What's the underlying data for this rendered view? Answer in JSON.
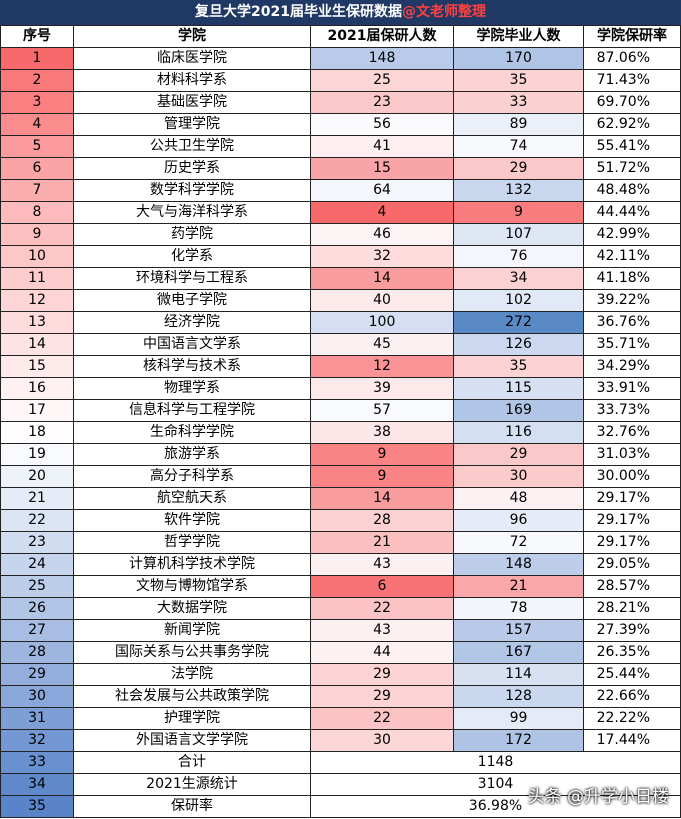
{
  "title": {
    "main": "复旦大学2021届毕业生保研数据",
    "author": "@文老师整理"
  },
  "headers": [
    "序号",
    "学院",
    "2021届保研人数",
    "学院毕业人数",
    "学院保研率"
  ],
  "rows": [
    {
      "no": "1",
      "college": "临床医学院",
      "baoyan": "148",
      "grad": "170",
      "rate": "87.06%",
      "c_no": "#f8696b",
      "c_bao": "#b9cbe8",
      "c_grad": "#b0c5e6"
    },
    {
      "no": "2",
      "college": "材料科学系",
      "baoyan": "25",
      "grad": "35",
      "rate": "71.43%",
      "c_no": "#f9787a",
      "c_bao": "#fcd5d6",
      "c_grad": "#fbd3d4"
    },
    {
      "no": "3",
      "college": "基础医学院",
      "baoyan": "23",
      "grad": "33",
      "rate": "69.70%",
      "c_no": "#fa7f81",
      "c_bao": "#fbc8c9",
      "c_grad": "#fbd0d1"
    },
    {
      "no": "4",
      "college": "管理学院",
      "baoyan": "56",
      "grad": "89",
      "rate": "62.92%",
      "c_no": "#fa8c8e",
      "c_bao": "#fbfbfe",
      "c_grad": "#eaeff8"
    },
    {
      "no": "5",
      "college": "公共卫生学院",
      "baoyan": "41",
      "grad": "74",
      "rate": "55.41%",
      "c_no": "#fb9b9d",
      "c_bao": "#fdeeef",
      "c_grad": "#f6f8fc"
    },
    {
      "no": "6",
      "college": "历史学系",
      "baoyan": "15",
      "grad": "29",
      "rate": "51.72%",
      "c_no": "#fba4a6",
      "c_bao": "#f9a5a7",
      "c_grad": "#fbc8c9"
    },
    {
      "no": "7",
      "college": "数学科学学院",
      "baoyan": "64",
      "grad": "132",
      "rate": "48.48%",
      "c_no": "#fcaeaf",
      "c_bao": "#f4f6fc",
      "c_grad": "#c8d6ee"
    },
    {
      "no": "8",
      "college": "大气与海洋科学系",
      "baoyan": "4",
      "grad": "9",
      "rate": "44.44%",
      "c_no": "#fcbabc",
      "c_bao": "#f8696b",
      "c_grad": "#f87b7d"
    },
    {
      "no": "9",
      "college": "药学院",
      "baoyan": "46",
      "grad": "107",
      "rate": "42.99%",
      "c_no": "#fdc0c1",
      "c_bao": "#fcf4f4",
      "c_grad": "#dee6f4"
    },
    {
      "no": "10",
      "college": "化学系",
      "baoyan": "32",
      "grad": "76",
      "rate": "42.11%",
      "c_no": "#fdc6c7",
      "c_bao": "#fcdcdd",
      "c_grad": "#f4f6fc"
    },
    {
      "no": "11",
      "college": "环境科学与工程系",
      "baoyan": "14",
      "grad": "34",
      "rate": "41.18%",
      "c_no": "#fdcdce",
      "c_bao": "#f99c9e",
      "c_grad": "#fbd2d3"
    },
    {
      "no": "12",
      "college": "微电子学院",
      "baoyan": "40",
      "grad": "102",
      "rate": "39.22%",
      "c_no": "#fed5d6",
      "c_bao": "#fdebec",
      "c_grad": "#e2e9f6"
    },
    {
      "no": "13",
      "college": "经济学院",
      "baoyan": "100",
      "grad": "272",
      "rate": "36.76%",
      "c_no": "#fedcdd",
      "c_bao": "#d5def2",
      "c_grad": "#5a8ac6"
    },
    {
      "no": "14",
      "college": "中国语言文学系",
      "baoyan": "45",
      "grad": "126",
      "rate": "35.71%",
      "c_no": "#fee3e4",
      "c_bao": "#fcf1f2",
      "c_grad": "#cbd8ef"
    },
    {
      "no": "15",
      "college": "核科学与技术系",
      "baoyan": "12",
      "grad": "35",
      "rate": "34.29%",
      "c_no": "#feeaeb",
      "c_bao": "#f99395",
      "c_grad": "#fbd3d4"
    },
    {
      "no": "16",
      "college": "物理学系",
      "baoyan": "39",
      "grad": "115",
      "rate": "33.91%",
      "c_no": "#fff1f1",
      "c_bao": "#fde9ea",
      "c_grad": "#d6e0f2"
    },
    {
      "no": "17",
      "college": "信息科学与工程学院",
      "baoyan": "57",
      "grad": "169",
      "rate": "33.73%",
      "c_no": "#fff7f7",
      "c_bao": "#f9fafd",
      "c_grad": "#b1c5e6"
    },
    {
      "no": "18",
      "college": "生命科学学院",
      "baoyan": "38",
      "grad": "116",
      "rate": "32.76%",
      "c_no": "#fffdfd",
      "c_bao": "#fde6e7",
      "c_grad": "#d5dff2"
    },
    {
      "no": "19",
      "college": "旅游学系",
      "baoyan": "9",
      "grad": "29",
      "rate": "31.03%",
      "c_no": "#f9fafd",
      "c_bao": "#f98385",
      "c_grad": "#fbc8c9"
    },
    {
      "no": "20",
      "college": "高分子科学系",
      "baoyan": "9",
      "grad": "30",
      "rate": "30.00%",
      "c_no": "#eef2f9",
      "c_bao": "#f98385",
      "c_grad": "#fbcacb"
    },
    {
      "no": "21",
      "college": "航空航天系",
      "baoyan": "14",
      "grad": "48",
      "rate": "29.17%",
      "c_no": "#e5ebf7",
      "c_bao": "#f99c9e",
      "c_grad": "#fdf2f3"
    },
    {
      "no": "22",
      "college": "软件学院",
      "baoyan": "28",
      "grad": "96",
      "rate": "29.17%",
      "c_no": "#dbe4f3",
      "c_bao": "#fbd1d2",
      "c_grad": "#e6ecf7"
    },
    {
      "no": "23",
      "college": "哲学学院",
      "baoyan": "21",
      "grad": "72",
      "rate": "29.17%",
      "c_no": "#d0dcf0",
      "c_bao": "#fbbfc0",
      "c_grad": "#f7f9fc"
    },
    {
      "no": "24",
      "college": "计算机科学技术学院",
      "baoyan": "43",
      "grad": "148",
      "rate": "29.05%",
      "c_no": "#c6d4ed",
      "c_bao": "#fdf0f0",
      "c_grad": "#bdcdea"
    },
    {
      "no": "25",
      "college": "文物与博物馆学系",
      "baoyan": "6",
      "grad": "21",
      "rate": "28.57%",
      "c_no": "#bccdea",
      "c_bao": "#f87375",
      "c_grad": "#faa7a9"
    },
    {
      "no": "26",
      "college": "大数据学院",
      "baoyan": "22",
      "grad": "78",
      "rate": "28.21%",
      "c_no": "#b1c5e6",
      "c_bao": "#fbc3c4",
      "c_grad": "#f2f5fb"
    },
    {
      "no": "27",
      "college": "新闻学院",
      "baoyan": "43",
      "grad": "157",
      "rate": "27.39%",
      "c_no": "#a7bde3",
      "c_bao": "#fdf0f0",
      "c_grad": "#b8cae8"
    },
    {
      "no": "28",
      "college": "国际关系与公共事务学院",
      "baoyan": "44",
      "grad": "167",
      "rate": "26.35%",
      "c_no": "#9db6e0",
      "c_bao": "#fdf1f1",
      "c_grad": "#b2c6e6"
    },
    {
      "no": "29",
      "college": "法学院",
      "baoyan": "29",
      "grad": "114",
      "rate": "25.44%",
      "c_no": "#93aedd",
      "c_bao": "#fcd4d5",
      "c_grad": "#d7e1f2"
    },
    {
      "no": "30",
      "college": "社会发展与公共政策学院",
      "baoyan": "29",
      "grad": "128",
      "rate": "22.66%",
      "c_no": "#89a7da",
      "c_bao": "#fcd4d5",
      "c_grad": "#cad8ef"
    },
    {
      "no": "31",
      "college": "护理学院",
      "baoyan": "22",
      "grad": "99",
      "rate": "22.22%",
      "c_no": "#7e9fd6",
      "c_bao": "#fbc3c4",
      "c_grad": "#e4ebf7"
    },
    {
      "no": "32",
      "college": "外国语言文学学院",
      "baoyan": "30",
      "grad": "172",
      "rate": "17.44%",
      "c_no": "#7498d3",
      "c_bao": "#fcd7d8",
      "c_grad": "#afc4e5"
    }
  ],
  "summary": [
    {
      "no": "33",
      "label": "合计",
      "value": "1148",
      "c_no": "#6a91cf"
    },
    {
      "no": "34",
      "label": "2021生源统计",
      "value": "3104",
      "c_no": "#6089cc"
    },
    {
      "no": "35",
      "label": "保研率",
      "value": "36.98%",
      "c_no": "#5a84c9"
    }
  ],
  "watermark": "头条 @升学小日楼"
}
